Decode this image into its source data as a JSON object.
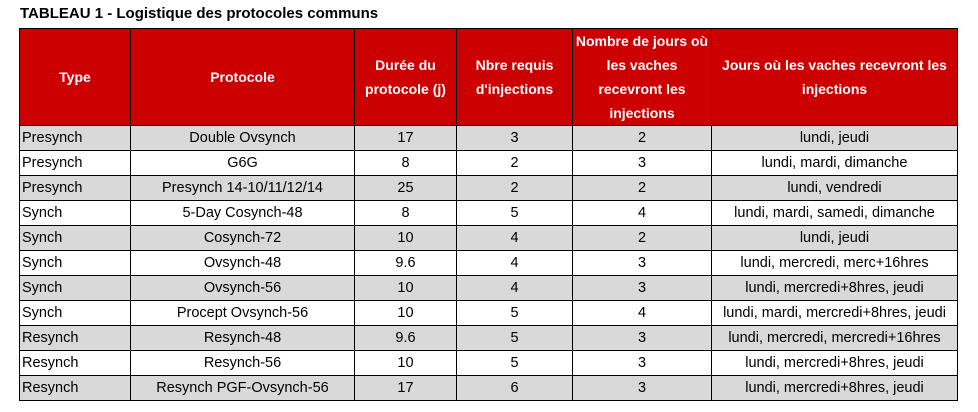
{
  "caption": "TABLEAU 1 - Logistique des protocoles communs",
  "colors": {
    "header_bg": "#cc0000",
    "header_text": "#ffffff",
    "shaded_row": "#d9d9d9",
    "border": "#000000"
  },
  "table": {
    "headers": [
      "Type",
      "Protocole",
      "Durée du protocole (j)",
      "Nbre requis d'injections",
      "Nombre de jours où les vaches recevront les injections",
      "Jours où les vaches recevront les injections"
    ],
    "rows": [
      [
        "Presynch",
        "Double Ovsynch",
        "17",
        "3",
        "2",
        "lundi, jeudi"
      ],
      [
        "Presynch",
        "G6G",
        "8",
        "2",
        "3",
        "lundi, mardi, dimanche"
      ],
      [
        "Presynch",
        "Presynch 14-10/11/12/14",
        "25",
        "2",
        "2",
        "lundi, vendredi"
      ],
      [
        "Synch",
        "5-Day Cosynch-48",
        "8",
        "5",
        "4",
        "lundi, mardi, samedi, dimanche"
      ],
      [
        "Synch",
        "Cosynch-72",
        "10",
        "4",
        "2",
        "lundi, jeudi"
      ],
      [
        "Synch",
        "Ovsynch-48",
        "9.6",
        "4",
        "3",
        "lundi, mercredi, merc+16hres"
      ],
      [
        "Synch",
        "Ovsynch-56",
        "10",
        "4",
        "3",
        "lundi, mercredi+8hres, jeudi"
      ],
      [
        "Synch",
        "Procept Ovsynch-56",
        "10",
        "5",
        "4",
        "lundi, mardi, mercredi+8hres, jeudi"
      ],
      [
        "Resynch",
        "Resynch-48",
        "9.6",
        "5",
        "3",
        "lundi, mercredi, mercredi+16hres"
      ],
      [
        "Resynch",
        "Resynch-56",
        "10",
        "5",
        "3",
        "lundi, mercredi+8hres, jeudi"
      ],
      [
        "Resynch",
        "Resynch PGF-Ovsynch-56",
        "17",
        "6",
        "3",
        "lundi, mercredi+8hres, jeudi"
      ]
    ]
  }
}
